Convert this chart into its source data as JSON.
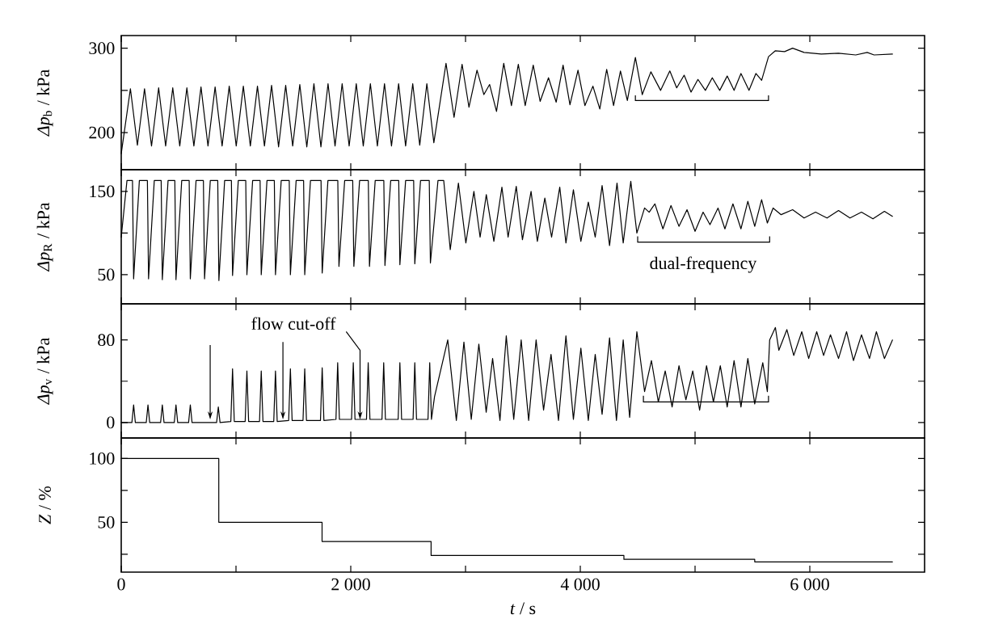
{
  "chart_data": [
    {
      "type": "line",
      "ylabel": "*Δp*$_{b}$ / kPa",
      "color": "#000000",
      "tick_labels": "y",
      "xlim": [
        0,
        7000
      ],
      "ylim": [
        156,
        315
      ],
      "xticks": [
        0,
        {
          "value": 1000,
          "label": null
        },
        2000,
        {
          "value": 3000,
          "label": null
        },
        4000,
        {
          "value": 5000,
          "label": null
        },
        6000
      ],
      "yticks": [
        200,
        {
          "value": 250,
          "label": null
        },
        300
      ],
      "x": [
        0,
        80,
        141,
        203,
        264,
        326,
        387,
        449,
        510,
        572,
        633,
        695,
        756,
        818,
        879,
        941,
        1002,
        1064,
        1125,
        1187,
        1248,
        1310,
        1371,
        1433,
        1494,
        1556,
        1617,
        1679,
        1740,
        1802,
        1863,
        1925,
        1986,
        2048,
        2109,
        2171,
        2232,
        2294,
        2355,
        2417,
        2478,
        2540,
        2601,
        2663,
        2724,
        2830,
        2900,
        2970,
        3030,
        3100,
        3160,
        3210,
        3270,
        3333,
        3400,
        3460,
        3520,
        3590,
        3650,
        3723,
        3790,
        3850,
        3910,
        3980,
        4040,
        4110,
        4170,
        4230,
        4290,
        4350,
        4410,
        4480,
        4540,
        4615,
        4700,
        4780,
        4840,
        4905,
        4965,
        5025,
        5090,
        5150,
        5215,
        5280,
        5340,
        5400,
        5470,
        5530,
        5580,
        5640,
        5700,
        5780,
        5850,
        5950,
        6100,
        6250,
        6400,
        6500,
        6560,
        6720
      ],
      "values": [
        175,
        252,
        185,
        252,
        184,
        253,
        184,
        253,
        184,
        253,
        184,
        254,
        184,
        254,
        184,
        255,
        184,
        255,
        184,
        255,
        184,
        256,
        183,
        256,
        184,
        257,
        183,
        258,
        183,
        258,
        184,
        258,
        184,
        258,
        184,
        258,
        184,
        258,
        184,
        258,
        184,
        258,
        185,
        258,
        188,
        282,
        218,
        281,
        230,
        274,
        245,
        257,
        225,
        282,
        232,
        281,
        232,
        280,
        237,
        265,
        236,
        280,
        233,
        274,
        232,
        255,
        228,
        275,
        232,
        273,
        238,
        289,
        245,
        272,
        250,
        273,
        253,
        268,
        248,
        263,
        250,
        265,
        250,
        267,
        250,
        270,
        250,
        270,
        262,
        290,
        297,
        296,
        300,
        295,
        293,
        294,
        292,
        295,
        292,
        293
      ]
    },
    {
      "type": "line",
      "ylabel": "*Δp*$_{R}$ / kPa",
      "color": "#000000",
      "tick_labels": "y",
      "xlim": [
        0,
        7000
      ],
      "ylim": [
        15,
        176
      ],
      "xticks": [
        0,
        {
          "value": 1000,
          "label": null
        },
        2000,
        {
          "value": 3000,
          "label": null
        },
        4000,
        {
          "value": 5000,
          "label": null
        },
        6000
      ],
      "yticks": [
        50,
        {
          "value": 100,
          "label": null
        },
        150
      ],
      "annotations": [
        "dual-frequency"
      ],
      "x": [
        0,
        50,
        98,
        108,
        158,
        228,
        238,
        288,
        348,
        358,
        408,
        467,
        477,
        527,
        592,
        602,
        652,
        716,
        726,
        776,
        841,
        851,
        901,
        960,
        970,
        1020,
        1085,
        1095,
        1145,
        1210,
        1220,
        1270,
        1334,
        1344,
        1394,
        1464,
        1474,
        1524,
        1589,
        1599,
        1649,
        1741,
        1751,
        1801,
        1887,
        1897,
        1947,
        2017,
        2027,
        2077,
        2153,
        2163,
        2213,
        2288,
        2298,
        2348,
        2418,
        2428,
        2478,
        2548,
        2558,
        2608,
        2684,
        2694,
        2760,
        2810,
        2867,
        2938,
        3003,
        3073,
        3127,
        3181,
        3247,
        3317,
        3371,
        3442,
        3496,
        3571,
        3626,
        3691,
        3750,
        3821,
        3875,
        3940,
        4005,
        4070,
        4130,
        4190,
        4255,
        4320,
        4374,
        4440,
        4493,
        4560,
        4600,
        4650,
        4720,
        4790,
        4860,
        4930,
        5000,
        5070,
        5130,
        5200,
        5260,
        5330,
        5400,
        5460,
        5520,
        5580,
        5630,
        5680,
        5750,
        5850,
        5950,
        6050,
        6150,
        6250,
        6350,
        6450,
        6550,
        6650,
        6720
      ],
      "values": [
        95,
        163,
        163,
        45,
        163,
        163,
        45,
        163,
        163,
        44,
        163,
        163,
        44,
        163,
        163,
        45,
        163,
        163,
        45,
        163,
        163,
        43,
        163,
        163,
        49,
        163,
        163,
        50,
        163,
        163,
        50,
        163,
        163,
        50,
        163,
        163,
        50,
        163,
        163,
        50,
        163,
        163,
        52,
        163,
        163,
        60,
        163,
        163,
        60,
        163,
        163,
        60,
        163,
        163,
        61,
        163,
        163,
        62,
        163,
        163,
        63,
        163,
        163,
        64,
        163,
        163,
        80,
        160,
        88,
        150,
        95,
        146,
        90,
        155,
        95,
        156,
        92,
        150,
        90,
        142,
        95,
        155,
        88,
        152,
        90,
        137,
        95,
        157,
        85,
        160,
        88,
        162,
        100,
        130,
        125,
        135,
        105,
        133,
        108,
        128,
        102,
        125,
        110,
        130,
        105,
        135,
        105,
        138,
        108,
        140,
        112,
        130,
        122,
        128,
        118,
        125,
        118,
        127,
        118,
        125,
        117,
        126,
        120
      ]
    },
    {
      "type": "line",
      "ylabel": "*Δp*$_{v}$ / kPa",
      "color": "#000000",
      "tick_labels": "y",
      "xlim": [
        0,
        7000
      ],
      "ylim": [
        -15,
        115
      ],
      "xticks": [
        0,
        {
          "value": 1000,
          "label": null
        },
        2000,
        {
          "value": 3000,
          "label": null
        },
        4000,
        {
          "value": 5000,
          "label": null
        },
        6000
      ],
      "yticks": [
        0,
        {
          "value": 40,
          "label": null
        },
        80
      ],
      "annotations": [
        {
          "text": "flow cut-off",
          "x": 1409,
          "y": 3
        }
      ],
      "x": [
        0,
        93,
        108,
        123,
        218,
        233,
        248,
        343,
        358,
        373,
        462,
        477,
        492,
        587,
        602,
        617,
        831,
        846,
        861,
        955,
        970,
        985,
        1080,
        1095,
        1110,
        1205,
        1220,
        1235,
        1329,
        1344,
        1359,
        1459,
        1474,
        1489,
        1584,
        1599,
        1614,
        1736,
        1751,
        1766,
        1871,
        1886,
        1901,
        2007,
        2022,
        2037,
        2137,
        2152,
        2167,
        2272,
        2287,
        2302,
        2413,
        2428,
        2443,
        2543,
        2558,
        2573,
        2673,
        2688,
        2703,
        2730,
        2845,
        2920,
        2986,
        3050,
        3116,
        3180,
        3236,
        3300,
        3355,
        3420,
        3485,
        3550,
        3615,
        3680,
        3745,
        3810,
        3875,
        3940,
        4005,
        4070,
        4130,
        4190,
        4255,
        4315,
        4374,
        4430,
        4493,
        4560,
        4620,
        4680,
        4740,
        4800,
        4860,
        4920,
        4980,
        5040,
        5100,
        5160,
        5220,
        5280,
        5340,
        5400,
        5460,
        5520,
        5590,
        5630,
        5650,
        5700,
        5730,
        5800,
        5860,
        5930,
        5990,
        6060,
        6120,
        6180,
        6250,
        6320,
        6380,
        6450,
        6520,
        6580,
        6650,
        6720
      ],
      "values": [
        0,
        0,
        17,
        0,
        0,
        17,
        0,
        0,
        17,
        0,
        0,
        17,
        0,
        0,
        17,
        0,
        0,
        15,
        0,
        1,
        52,
        1,
        1,
        50,
        1,
        1,
        50,
        1,
        1,
        50,
        1,
        2,
        52,
        2,
        2,
        52,
        2,
        2,
        53,
        2,
        3,
        58,
        3,
        3,
        58,
        3,
        3,
        58,
        3,
        3,
        58,
        3,
        3,
        58,
        3,
        3,
        58,
        3,
        3,
        58,
        3,
        25,
        80,
        2,
        78,
        3,
        76,
        10,
        62,
        2,
        84,
        3,
        80,
        2,
        80,
        12,
        66,
        2,
        84,
        3,
        72,
        2,
        66,
        8,
        82,
        2,
        80,
        5,
        88,
        30,
        60,
        20,
        50,
        15,
        55,
        22,
        50,
        12,
        55,
        20,
        55,
        15,
        60,
        15,
        62,
        18,
        58,
        30,
        80,
        92,
        70,
        90,
        65,
        88,
        62,
        88,
        65,
        85,
        62,
        88,
        60,
        85,
        62,
        88,
        62,
        80
      ]
    },
    {
      "type": "step",
      "ylabel": "*Z* / %",
      "xlabel": "*t* / s",
      "color": "#000000",
      "xlim": [
        0,
        7000
      ],
      "ylim": [
        11,
        116
      ],
      "xticks": [
        0,
        {
          "value": 1000,
          "label": null
        },
        {
          "value": 2000,
          "label": "2 000"
        },
        {
          "value": 3000,
          "label": null
        },
        {
          "value": 4000,
          "label": "4 000"
        },
        {
          "value": 5000,
          "label": null
        },
        {
          "value": 6000,
          "label": "6 000"
        }
      ],
      "yticks": [
        {
          "value": 25,
          "label": null
        },
        50,
        {
          "value": 75,
          "label": null
        },
        100
      ],
      "x": [
        0,
        850,
        1750,
        2700,
        4380,
        5520,
        6720
      ],
      "values": [
        100,
        50,
        35,
        24,
        21,
        19,
        19
      ]
    }
  ]
}
